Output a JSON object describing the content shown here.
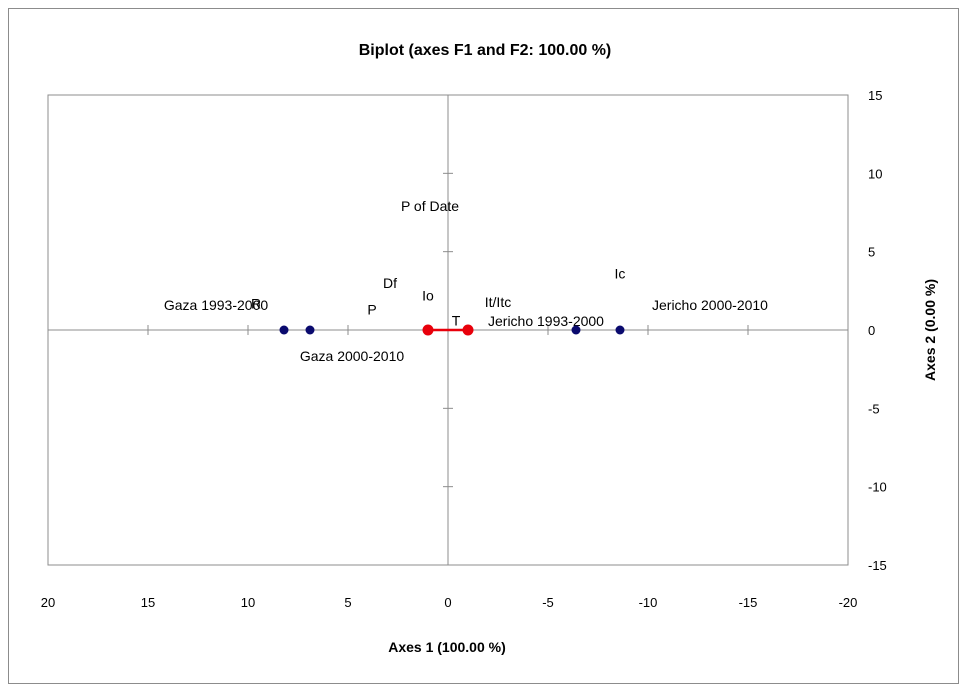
{
  "chart_data": {
    "type": "scatter",
    "title": "Biplot (axes F1 and F2: 100.00 %)",
    "xlabel": "Axes 1 (100.00 %)",
    "ylabel": "Axes 2 (0.00 %)",
    "xlim": [
      20,
      -20
    ],
    "ylim": [
      -15,
      15
    ],
    "x_reversed": true,
    "x_ticks": [
      20,
      15,
      10,
      5,
      0,
      -5,
      -10,
      -15,
      -20
    ],
    "y_ticks": [
      15,
      10,
      5,
      0,
      -5,
      -10,
      -15
    ],
    "grid": false,
    "legend": "none",
    "observations": {
      "color": "#0a0a6e",
      "points": [
        {
          "x": 8.2,
          "y": 0,
          "label": "Gaza 1993-2000"
        },
        {
          "x": 6.9,
          "y": 0,
          "label": "Gaza 2000-2010"
        },
        {
          "x": -6.4,
          "y": 0,
          "label": "Jericho 1993-2000"
        },
        {
          "x": -8.6,
          "y": 0,
          "label": "Jericho 2000-2010"
        }
      ]
    },
    "variables": {
      "color": "#e8000b",
      "points": [
        {
          "x": 1.0,
          "y": 0
        },
        {
          "x": -1.0,
          "y": 0
        }
      ]
    },
    "variable_labels": [
      {
        "x": 9.6,
        "y": 1.7,
        "label": "R"
      },
      {
        "x": 3.8,
        "y": 1.3,
        "label": "P"
      },
      {
        "x": 2.9,
        "y": 3.0,
        "label": "Df"
      },
      {
        "x": 1.0,
        "y": 2.2,
        "label": "Io"
      },
      {
        "x": -0.4,
        "y": 0.6,
        "label": "T"
      },
      {
        "x": -2.5,
        "y": 1.8,
        "label": "It/Itc"
      },
      {
        "x": -8.6,
        "y": 3.6,
        "label": "Ic"
      },
      {
        "x": 0.9,
        "y": 7.9,
        "label": "P of Date"
      }
    ]
  }
}
